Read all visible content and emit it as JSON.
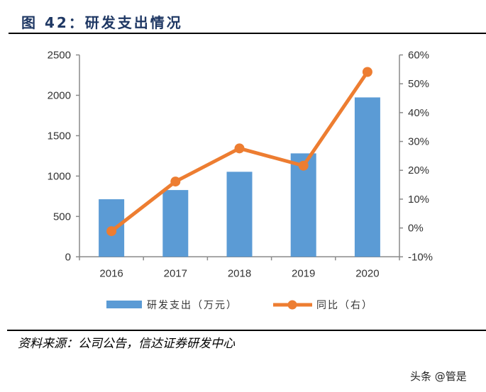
{
  "title": "图 42：研发支出情况",
  "source": "资料来源：公司公告，信达证券研发中心",
  "watermark": "头条 @管是",
  "chart_data": {
    "type": "bar+line",
    "categories": [
      "2016",
      "2017",
      "2018",
      "2019",
      "2020"
    ],
    "series": [
      {
        "name": "研发支出（万元）",
        "type": "bar",
        "axis": "left",
        "color": "#5b9bd5",
        "values": [
          713,
          827,
          1053,
          1281,
          1974
        ]
      },
      {
        "name": "同比（右）",
        "type": "line",
        "axis": "right",
        "color": "#ed7d31",
        "values": [
          -1.1,
          16.1,
          27.6,
          21.6,
          54.1
        ]
      }
    ],
    "y_left": {
      "range": [
        0,
        2500
      ],
      "ticks": [
        "0",
        "500",
        "1000",
        "1500",
        "2000",
        "2500"
      ]
    },
    "y_right": {
      "range": [
        -10,
        60
      ],
      "ticks": [
        "-10%",
        "0%",
        "10%",
        "20%",
        "30%",
        "40%",
        "50%",
        "60%"
      ]
    },
    "grid": false,
    "legend_position": "bottom"
  }
}
